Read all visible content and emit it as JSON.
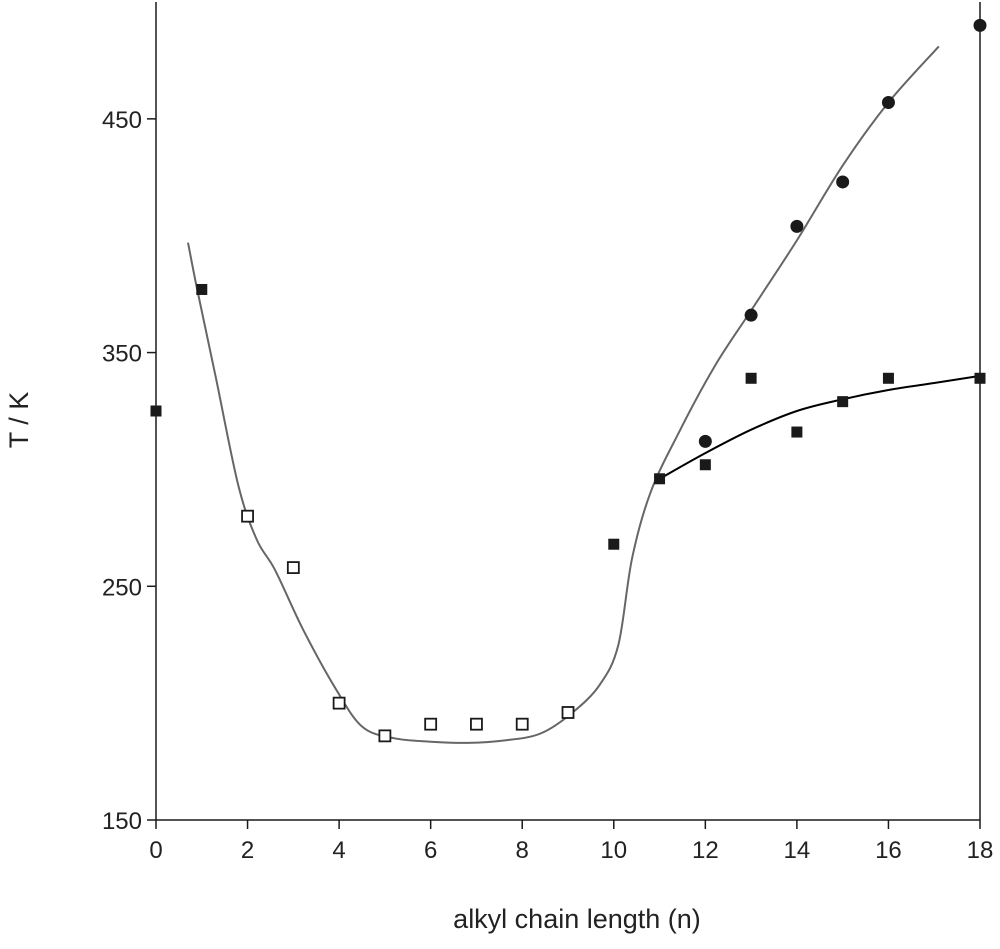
{
  "chart_data": {
    "type": "scatter",
    "title": "",
    "xlabel": "alkyl chain length (n)",
    "ylabel": "T / K",
    "xlim": [
      0,
      18
    ],
    "ylim": [
      150,
      500
    ],
    "xticks": [
      0,
      2,
      4,
      6,
      8,
      10,
      12,
      14,
      16,
      18
    ],
    "yticks": [
      150,
      250,
      350,
      450
    ],
    "grid": false,
    "legend": "none",
    "series": [
      {
        "marker": "filled-square",
        "color": "#1a1a1a",
        "points": [
          {
            "x": 0,
            "y": 325
          },
          {
            "x": 1,
            "y": 377
          },
          {
            "x": 10,
            "y": 268
          },
          {
            "x": 11,
            "y": 296
          },
          {
            "x": 12,
            "y": 302
          },
          {
            "x": 13,
            "y": 339
          },
          {
            "x": 14,
            "y": 316
          },
          {
            "x": 15,
            "y": 329
          },
          {
            "x": 16,
            "y": 339
          },
          {
            "x": 18,
            "y": 339
          }
        ]
      },
      {
        "marker": "open-square",
        "color": "#1a1a1a",
        "points": [
          {
            "x": 2,
            "y": 280
          },
          {
            "x": 3,
            "y": 258
          },
          {
            "x": 4,
            "y": 200
          },
          {
            "x": 5,
            "y": 186
          },
          {
            "x": 6,
            "y": 191
          },
          {
            "x": 7,
            "y": 191
          },
          {
            "x": 8,
            "y": 191
          },
          {
            "x": 9,
            "y": 196
          }
        ]
      },
      {
        "marker": "filled-circle",
        "color": "#1a1a1a",
        "points": [
          {
            "x": 12,
            "y": 312
          },
          {
            "x": 13,
            "y": 366
          },
          {
            "x": 14,
            "y": 404
          },
          {
            "x": 15,
            "y": 423
          },
          {
            "x": 16,
            "y": 457
          },
          {
            "x": 18,
            "y": 490
          }
        ]
      }
    ],
    "curves": [
      {
        "color": "#666666",
        "points": [
          {
            "x": 0.7,
            "y": 397
          },
          {
            "x": 0.9,
            "y": 377
          },
          {
            "x": 1.3,
            "y": 340
          },
          {
            "x": 1.8,
            "y": 293
          },
          {
            "x": 2.2,
            "y": 270
          },
          {
            "x": 2.6,
            "y": 257
          },
          {
            "x": 3.2,
            "y": 232
          },
          {
            "x": 3.9,
            "y": 207
          },
          {
            "x": 4.5,
            "y": 190
          },
          {
            "x": 5.2,
            "y": 185
          },
          {
            "x": 6.0,
            "y": 183.5
          },
          {
            "x": 6.8,
            "y": 183
          },
          {
            "x": 7.6,
            "y": 184
          },
          {
            "x": 8.4,
            "y": 187
          },
          {
            "x": 9.1,
            "y": 196
          },
          {
            "x": 9.7,
            "y": 208
          },
          {
            "x": 10.1,
            "y": 225
          },
          {
            "x": 10.4,
            "y": 262
          },
          {
            "x": 10.8,
            "y": 290
          },
          {
            "x": 11.4,
            "y": 315
          },
          {
            "x": 12.2,
            "y": 344
          },
          {
            "x": 13.0,
            "y": 368
          },
          {
            "x": 14.0,
            "y": 398
          },
          {
            "x": 15.0,
            "y": 430
          },
          {
            "x": 16.0,
            "y": 457
          },
          {
            "x": 17.1,
            "y": 481
          }
        ]
      },
      {
        "color": "#000000",
        "points": [
          {
            "x": 11,
            "y": 296
          },
          {
            "x": 12,
            "y": 307
          },
          {
            "x": 13,
            "y": 317
          },
          {
            "x": 14,
            "y": 325
          },
          {
            "x": 15,
            "y": 330
          },
          {
            "x": 16,
            "y": 334
          },
          {
            "x": 17,
            "y": 337
          },
          {
            "x": 18,
            "y": 340
          }
        ]
      }
    ]
  }
}
